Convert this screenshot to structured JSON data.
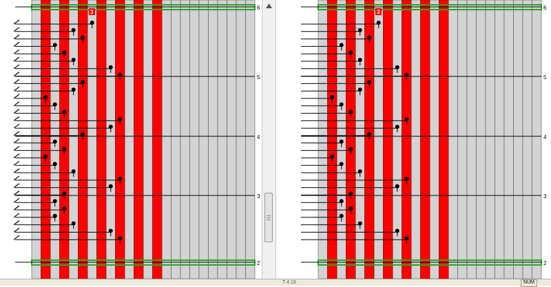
{
  "measure_labels": [
    "6",
    "5",
    "4",
    "3",
    "2"
  ],
  "highlight_badge": "3",
  "status": {
    "num_indicator": "NUM",
    "position_text": "T 4 19"
  },
  "colors": {
    "key_column_fill": "#ff0000",
    "lane_fill": "#d3d3d3",
    "measure_bar_green": "#22aa22"
  },
  "icons": {
    "scroll_up": "triangle-up-icon"
  }
}
